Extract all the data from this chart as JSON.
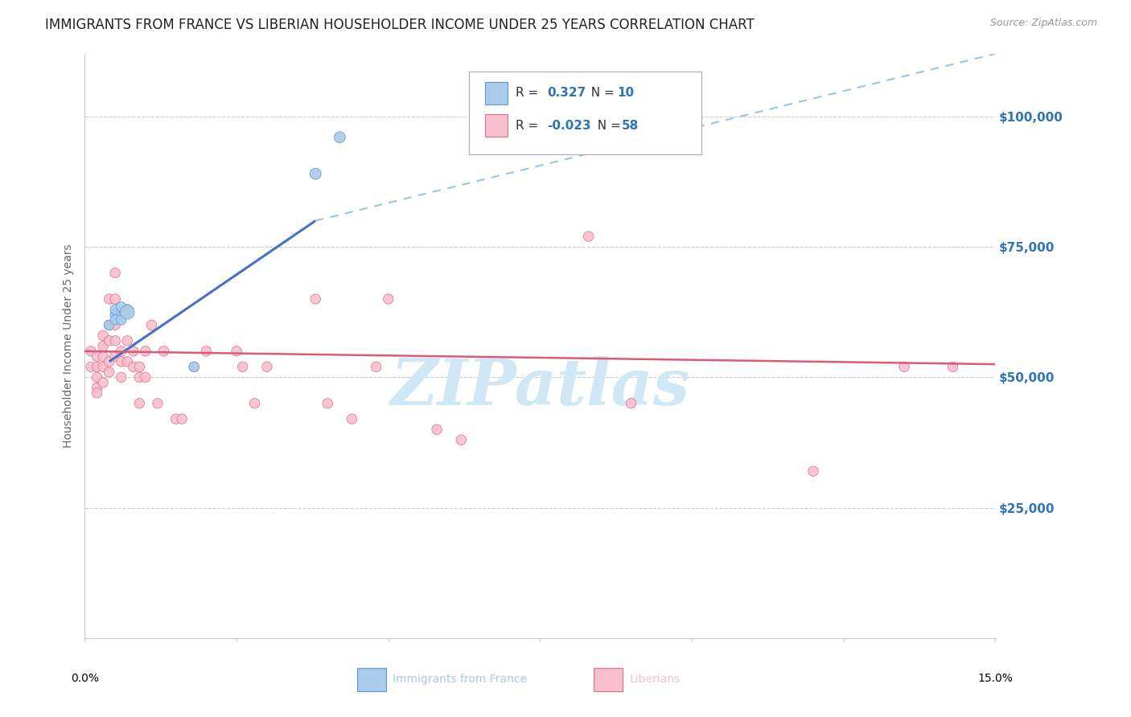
{
  "title": "IMMIGRANTS FROM FRANCE VS LIBERIAN HOUSEHOLDER INCOME UNDER 25 YEARS CORRELATION CHART",
  "source": "Source: ZipAtlas.com",
  "ylabel": "Householder Income Under 25 years",
  "legend_blue_r": "R =",
  "legend_blue_r_val": "0.327",
  "legend_blue_n": "N =",
  "legend_blue_n_val": "10",
  "legend_pink_r": "R =",
  "legend_pink_r_val": "-0.023",
  "legend_pink_n": "N =",
  "legend_pink_n_val": "58",
  "watermark": "ZIPatlas",
  "ytick_labels": [
    "$25,000",
    "$50,000",
    "$75,000",
    "$100,000"
  ],
  "ytick_values": [
    25000,
    50000,
    75000,
    100000
  ],
  "ylim": [
    0,
    112000
  ],
  "xlim": [
    0.0,
    0.15
  ],
  "blue_scatter": {
    "x": [
      0.004,
      0.005,
      0.005,
      0.005,
      0.006,
      0.006,
      0.007,
      0.018,
      0.038,
      0.042
    ],
    "y": [
      60000,
      62000,
      61000,
      63000,
      61000,
      63500,
      62500,
      52000,
      89000,
      96000
    ],
    "size": [
      80,
      80,
      80,
      80,
      80,
      80,
      160,
      80,
      100,
      100
    ]
  },
  "pink_scatter": {
    "x": [
      0.001,
      0.001,
      0.002,
      0.002,
      0.002,
      0.002,
      0.002,
      0.003,
      0.003,
      0.003,
      0.003,
      0.003,
      0.004,
      0.004,
      0.004,
      0.004,
      0.004,
      0.005,
      0.005,
      0.005,
      0.005,
      0.005,
      0.006,
      0.006,
      0.006,
      0.007,
      0.007,
      0.007,
      0.008,
      0.008,
      0.009,
      0.009,
      0.009,
      0.01,
      0.01,
      0.011,
      0.012,
      0.013,
      0.015,
      0.016,
      0.018,
      0.02,
      0.025,
      0.026,
      0.028,
      0.03,
      0.038,
      0.04,
      0.044,
      0.048,
      0.05,
      0.058,
      0.062,
      0.083,
      0.09,
      0.12,
      0.135,
      0.143
    ],
    "y": [
      55000,
      52000,
      54000,
      52000,
      50000,
      48000,
      47000,
      58000,
      56000,
      54000,
      52000,
      49000,
      65000,
      60000,
      57000,
      53000,
      51000,
      70000,
      65000,
      60000,
      57000,
      54000,
      55000,
      53000,
      50000,
      63000,
      57000,
      53000,
      55000,
      52000,
      52000,
      50000,
      45000,
      55000,
      50000,
      60000,
      45000,
      55000,
      42000,
      42000,
      52000,
      55000,
      55000,
      52000,
      45000,
      52000,
      65000,
      45000,
      42000,
      52000,
      65000,
      40000,
      38000,
      77000,
      45000,
      32000,
      52000,
      52000
    ],
    "size": [
      80,
      80,
      80,
      80,
      80,
      80,
      80,
      80,
      80,
      80,
      80,
      80,
      80,
      80,
      80,
      80,
      80,
      80,
      80,
      80,
      80,
      80,
      80,
      80,
      80,
      80,
      80,
      80,
      80,
      80,
      80,
      80,
      80,
      80,
      80,
      80,
      80,
      80,
      80,
      80,
      80,
      80,
      80,
      80,
      80,
      80,
      80,
      80,
      80,
      80,
      80,
      80,
      80,
      80,
      80,
      80,
      80,
      80
    ]
  },
  "blue_line_solid": {
    "x0": 0.004,
    "x1": 0.038,
    "y0": 53000,
    "y1": 80000
  },
  "blue_line_dashed": {
    "x0": 0.038,
    "x1": 0.15,
    "y0": 80000,
    "y1": 112000
  },
  "pink_line": {
    "x0": 0.0,
    "x1": 0.15,
    "y0": 55000,
    "y1": 52500
  },
  "blue_scatter_color": "#aacbea",
  "blue_scatter_edge": "#5b9bd5",
  "pink_scatter_color": "#f8c0ce",
  "pink_scatter_edge": "#e07090",
  "line_blue_color": "#4472c4",
  "line_blue_dash_color": "#9dc3e6",
  "line_pink_color": "#e05878",
  "background_color": "#ffffff",
  "grid_color": "#cccccc",
  "title_color": "#222222",
  "axis_label_color": "#2e75b6",
  "watermark_color": "#d0e8f5",
  "title_fontsize": 12,
  "source_fontsize": 9,
  "ylabel_fontsize": 10,
  "ytick_fontsize": 11,
  "legend_fontsize": 11
}
